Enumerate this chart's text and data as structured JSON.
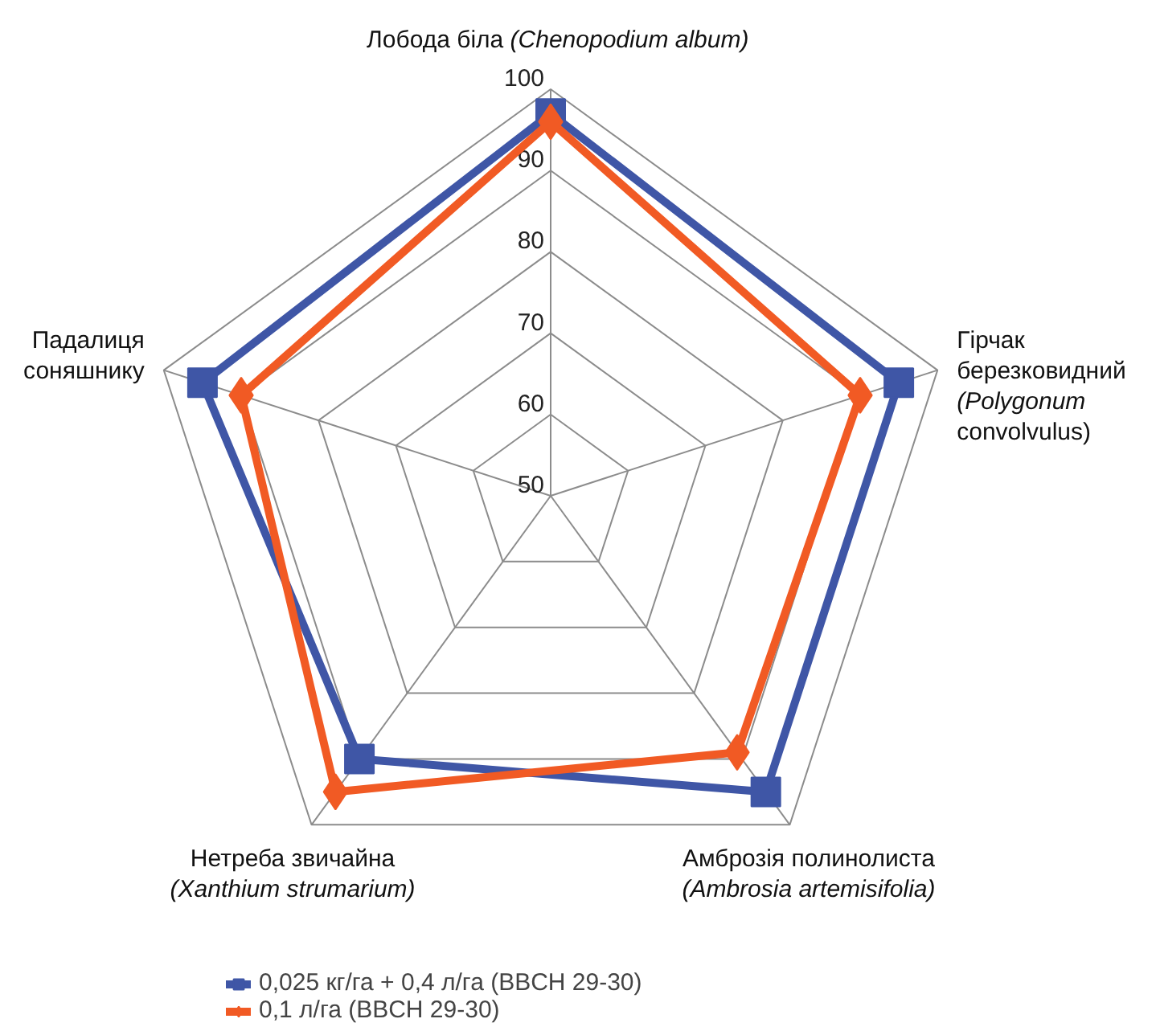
{
  "chart_data": {
    "type": "radar",
    "categories": [
      "Лобода біла (Chenopodium album)",
      "Гірчак\nберезковидний\n(Polygonum\nconvolvulus)",
      "Амброзія полинолиста\n(Ambrosia artemisifolia)",
      "Нетреба звичайна\n(Xanthium strumarium)",
      "Падалиця\nсоняшнику"
    ],
    "series": [
      {
        "name": "0,025 кг/га + 0,4 л/га (BBCH 29-30)",
        "color": "#3f56a6",
        "marker": "square",
        "values": [
          97,
          95,
          95,
          90,
          95
        ]
      },
      {
        "name": "0,1 л/га (BBCH 29-30)",
        "color": "#f15a24",
        "marker": "diamond",
        "values": [
          96,
          90,
          89,
          95,
          90
        ]
      }
    ],
    "ylim": [
      50,
      100
    ],
    "yticks": [
      50,
      60,
      70,
      80,
      90,
      100
    ],
    "grid": true,
    "legend": "bottom"
  }
}
